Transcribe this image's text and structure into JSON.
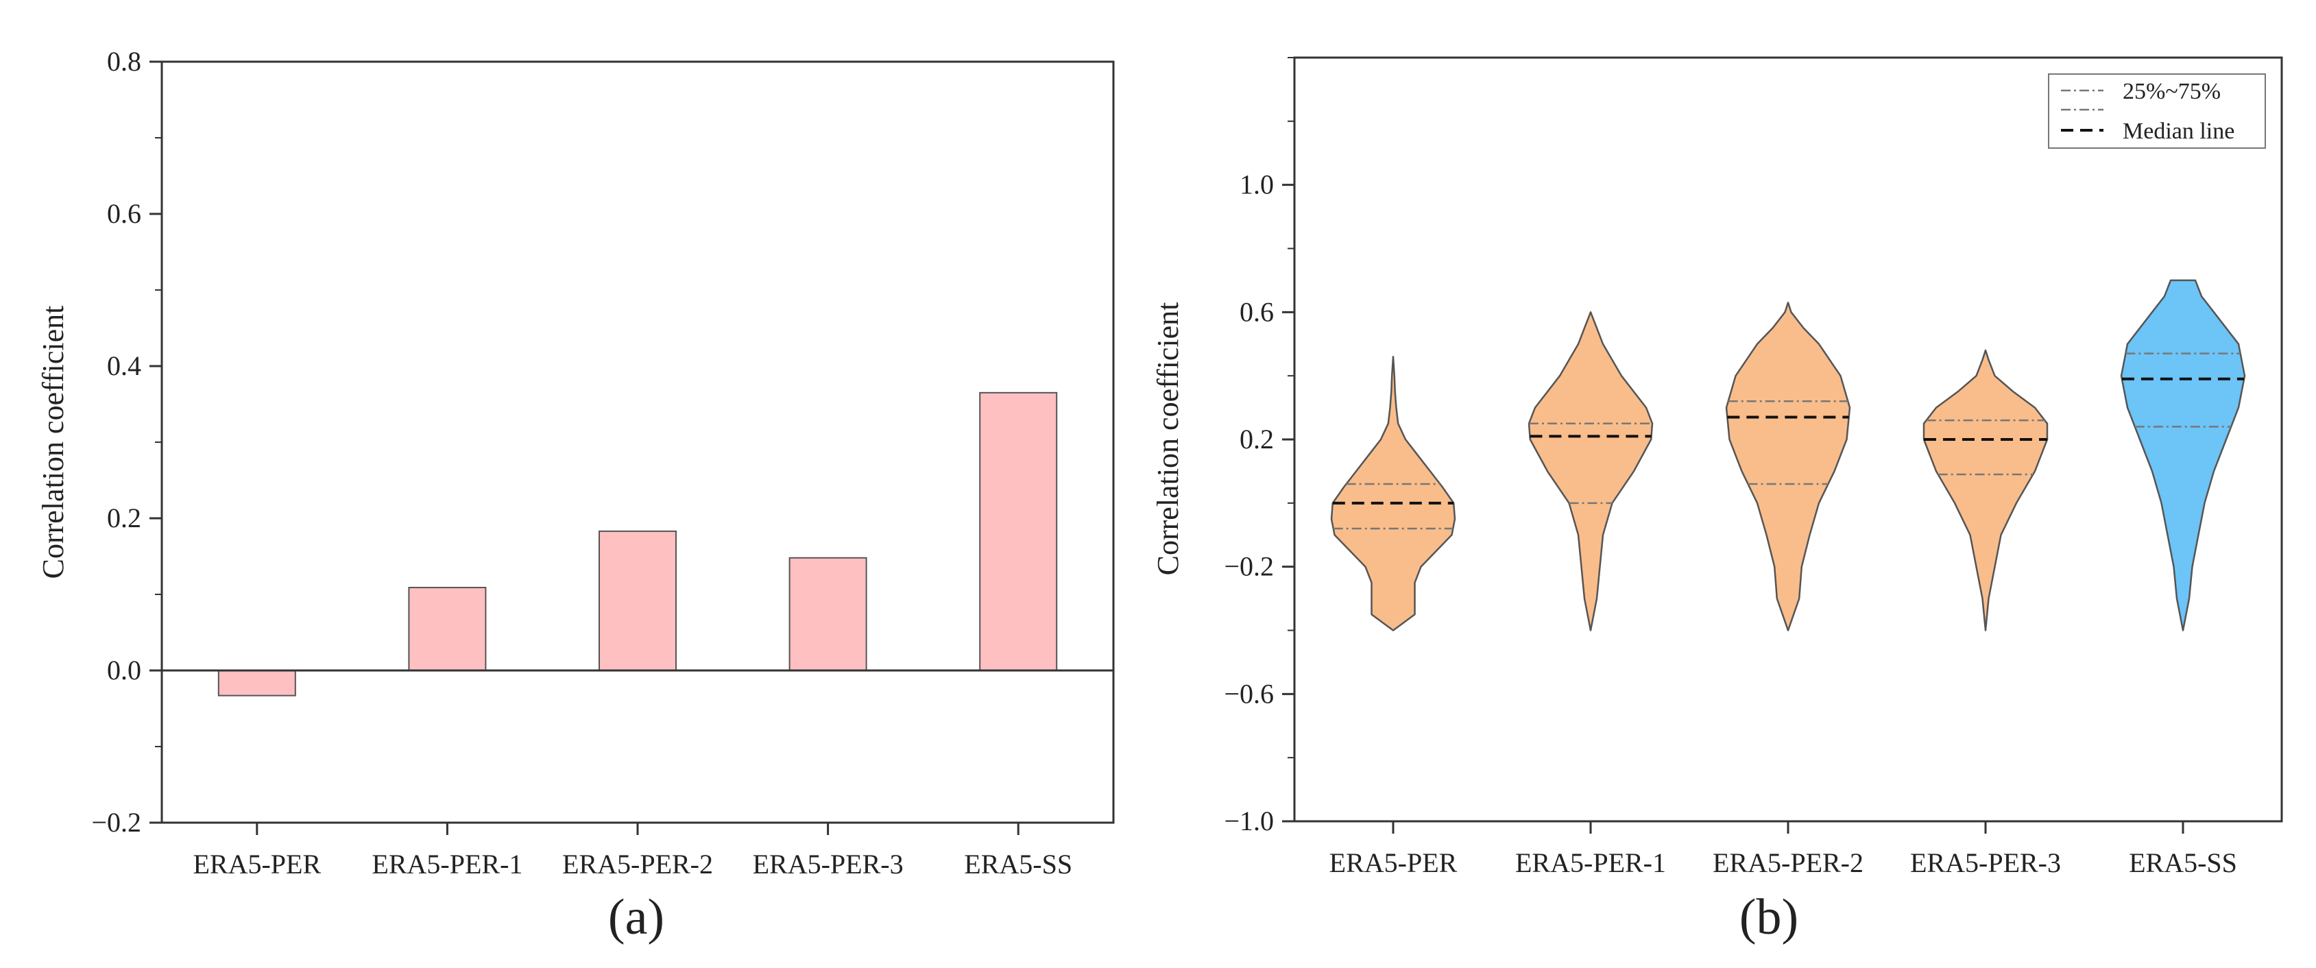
{
  "chart_data": [
    {
      "id": "a",
      "type": "bar",
      "panel_label": "(a)",
      "categories": [
        "ERA5-PER",
        "ERA5-PER-1",
        "ERA5-PER-2",
        "ERA5-PER-3",
        "ERA5-SS"
      ],
      "values": [
        -0.033,
        0.109,
        0.183,
        0.148,
        0.365
      ],
      "ylabel": "Correlation coefficient",
      "xlabel": "",
      "ylim": [
        -0.2,
        0.8
      ],
      "yticks": [
        -0.2,
        0.0,
        0.2,
        0.4,
        0.6,
        0.8
      ],
      "ytick_labels": [
        "−0.2",
        "0.0",
        "0.2",
        "0.4",
        "0.6",
        "0.8"
      ],
      "bar_color": "#ffc0c2",
      "bar_edge_color": "#555555",
      "zero_line": true
    },
    {
      "id": "b",
      "type": "violin",
      "panel_label": "(b)",
      "categories": [
        "ERA5-PER",
        "ERA5-PER-1",
        "ERA5-PER-2",
        "ERA5-PER-3",
        "ERA5-SS"
      ],
      "ylabel": "Correlation coefficient",
      "xlabel": "",
      "ylim": [
        -1.0,
        1.4
      ],
      "yticks": [
        -1.0,
        -0.6,
        -0.2,
        0.2,
        0.6,
        1.0
      ],
      "ytick_labels": [
        "−1.0",
        "−0.6",
        "−0.2",
        "0.2",
        "0.6",
        "1.0"
      ],
      "legend": {
        "position": "top-right",
        "items": [
          {
            "label": "25%~75%",
            "style": "dash-dot"
          },
          {
            "label": "Median line",
            "style": "dashed"
          }
        ]
      },
      "series": [
        {
          "name": "ERA5-PER",
          "color": "#f9bd8b",
          "min": -0.4,
          "max": 0.46,
          "q1": -0.08,
          "median": 0.0,
          "q3": 0.06,
          "profile": [
            [
              -0.4,
              0.0
            ],
            [
              -0.35,
              0.35
            ],
            [
              -0.3,
              0.35
            ],
            [
              -0.25,
              0.35
            ],
            [
              -0.2,
              0.45
            ],
            [
              -0.15,
              0.7
            ],
            [
              -0.1,
              0.95
            ],
            [
              -0.05,
              1.0
            ],
            [
              0.0,
              0.98
            ],
            [
              0.05,
              0.8
            ],
            [
              0.1,
              0.6
            ],
            [
              0.15,
              0.4
            ],
            [
              0.2,
              0.2
            ],
            [
              0.25,
              0.08
            ],
            [
              0.3,
              0.05
            ],
            [
              0.35,
              0.03
            ],
            [
              0.4,
              0.02
            ],
            [
              0.46,
              0.0
            ]
          ]
        },
        {
          "name": "ERA5-PER-1",
          "color": "#f9bd8b",
          "min": -0.4,
          "max": 0.6,
          "q1": 0.0,
          "median": 0.21,
          "q3": 0.25,
          "profile": [
            [
              -0.4,
              0.0
            ],
            [
              -0.3,
              0.1
            ],
            [
              -0.2,
              0.15
            ],
            [
              -0.1,
              0.2
            ],
            [
              0.0,
              0.35
            ],
            [
              0.1,
              0.7
            ],
            [
              0.2,
              0.98
            ],
            [
              0.25,
              1.0
            ],
            [
              0.3,
              0.9
            ],
            [
              0.4,
              0.5
            ],
            [
              0.5,
              0.2
            ],
            [
              0.55,
              0.1
            ],
            [
              0.6,
              0.0
            ]
          ]
        },
        {
          "name": "ERA5-PER-2",
          "color": "#f9bd8b",
          "min": -0.4,
          "max": 0.63,
          "q1": 0.06,
          "median": 0.27,
          "q3": 0.32,
          "profile": [
            [
              -0.4,
              0.0
            ],
            [
              -0.3,
              0.18
            ],
            [
              -0.2,
              0.22
            ],
            [
              -0.1,
              0.35
            ],
            [
              0.0,
              0.5
            ],
            [
              0.1,
              0.75
            ],
            [
              0.2,
              0.95
            ],
            [
              0.3,
              1.0
            ],
            [
              0.4,
              0.85
            ],
            [
              0.5,
              0.5
            ],
            [
              0.55,
              0.25
            ],
            [
              0.6,
              0.05
            ],
            [
              0.63,
              0.0
            ]
          ]
        },
        {
          "name": "ERA5-PER-3",
          "color": "#f9bd8b",
          "min": -0.4,
          "max": 0.48,
          "q1": 0.09,
          "median": 0.2,
          "q3": 0.26,
          "profile": [
            [
              -0.4,
              0.0
            ],
            [
              -0.3,
              0.05
            ],
            [
              -0.2,
              0.15
            ],
            [
              -0.1,
              0.25
            ],
            [
              0.0,
              0.5
            ],
            [
              0.1,
              0.8
            ],
            [
              0.2,
              1.0
            ],
            [
              0.25,
              1.0
            ],
            [
              0.3,
              0.8
            ],
            [
              0.35,
              0.45
            ],
            [
              0.4,
              0.15
            ],
            [
              0.45,
              0.05
            ],
            [
              0.48,
              0.0
            ]
          ]
        },
        {
          "name": "ERA5-SS",
          "color": "#6cc4f7",
          "min": -0.4,
          "max": 0.7,
          "q1": 0.24,
          "median": 0.39,
          "q3": 0.47,
          "profile": [
            [
              -0.4,
              0.0
            ],
            [
              -0.3,
              0.1
            ],
            [
              -0.2,
              0.15
            ],
            [
              -0.1,
              0.25
            ],
            [
              0.0,
              0.35
            ],
            [
              0.1,
              0.5
            ],
            [
              0.2,
              0.7
            ],
            [
              0.3,
              0.9
            ],
            [
              0.4,
              1.0
            ],
            [
              0.5,
              0.9
            ],
            [
              0.6,
              0.5
            ],
            [
              0.65,
              0.3
            ],
            [
              0.7,
              0.2
            ]
          ]
        }
      ]
    }
  ]
}
